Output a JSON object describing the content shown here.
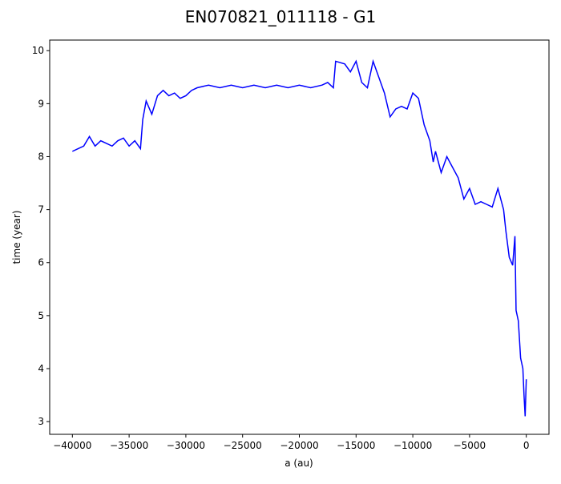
{
  "chart_data": {
    "type": "line",
    "title": "EN070821_011118 - G1",
    "xlabel": "a (au)",
    "ylabel": "time (year)",
    "x": [
      -40000,
      -39500,
      -39000,
      -38500,
      -38000,
      -37500,
      -37000,
      -36500,
      -36000,
      -35500,
      -35000,
      -34500,
      -34000,
      -33800,
      -33500,
      -33000,
      -32500,
      -32000,
      -31500,
      -31000,
      -30500,
      -30000,
      -29500,
      -29000,
      -28000,
      -27000,
      -26000,
      -25000,
      -24000,
      -23000,
      -22000,
      -21000,
      -20000,
      -19000,
      -18000,
      -17500,
      -17000,
      -16800,
      -16000,
      -15500,
      -15000,
      -14500,
      -14000,
      -13500,
      -13000,
      -12500,
      -12000,
      -11500,
      -11000,
      -10500,
      -10000,
      -9500,
      -9000,
      -8500,
      -8200,
      -8000,
      -7500,
      -7000,
      -6500,
      -6000,
      -5500,
      -5000,
      -4500,
      -4000,
      -3500,
      -3000,
      -2500,
      -2000,
      -1800,
      -1500,
      -1200,
      -1000,
      -900,
      -700,
      -500,
      -300,
      -200,
      -100,
      0
    ],
    "series": [
      {
        "name": "G1",
        "color": "#0000ff",
        "values": [
          8.1,
          8.15,
          8.2,
          8.38,
          8.2,
          8.3,
          8.25,
          8.2,
          8.3,
          8.35,
          8.2,
          8.3,
          8.15,
          8.7,
          9.05,
          8.8,
          9.15,
          9.25,
          9.15,
          9.2,
          9.1,
          9.15,
          9.25,
          9.3,
          9.35,
          9.3,
          9.35,
          9.3,
          9.35,
          9.3,
          9.35,
          9.3,
          9.35,
          9.3,
          9.35,
          9.4,
          9.3,
          9.8,
          9.75,
          9.6,
          9.8,
          9.4,
          9.3,
          9.8,
          9.5,
          9.2,
          8.75,
          8.9,
          8.95,
          8.9,
          9.2,
          9.1,
          8.6,
          8.3,
          7.9,
          8.1,
          7.7,
          8.0,
          7.8,
          7.6,
          7.2,
          7.4,
          7.1,
          7.15,
          7.1,
          7.05,
          7.4,
          7.0,
          6.6,
          6.1,
          5.95,
          6.5,
          5.1,
          4.9,
          4.2,
          4.0,
          3.5,
          3.1,
          3.8
        ]
      }
    ],
    "xlim": [
      -42000,
      2000
    ],
    "ylim": [
      2.76,
      10.2
    ],
    "xticks": [
      {
        "value": -40000,
        "label": "−40000"
      },
      {
        "value": -35000,
        "label": "−35000"
      },
      {
        "value": -30000,
        "label": "−30000"
      },
      {
        "value": -25000,
        "label": "−25000"
      },
      {
        "value": -20000,
        "label": "−20000"
      },
      {
        "value": -15000,
        "label": "−15000"
      },
      {
        "value": -10000,
        "label": "−10000"
      },
      {
        "value": -5000,
        "label": "−5000"
      },
      0
    ],
    "yticks": [
      3,
      4,
      5,
      6,
      7,
      8,
      9,
      10
    ]
  }
}
